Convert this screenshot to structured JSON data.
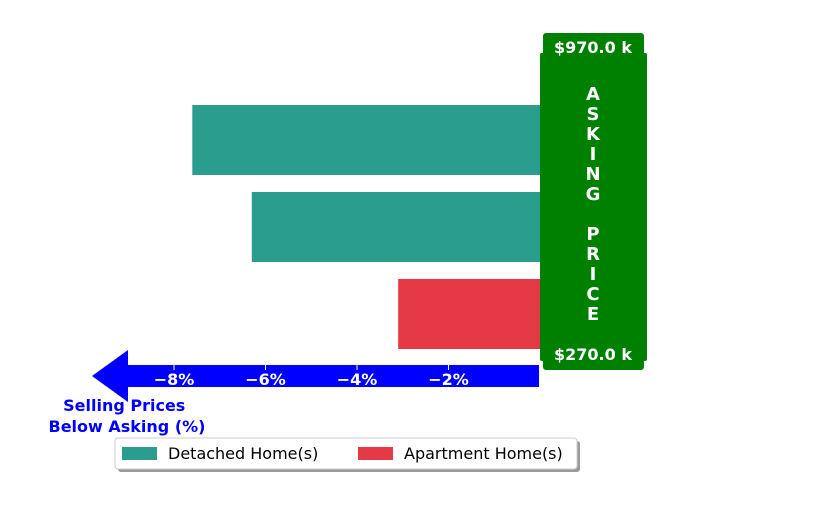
{
  "chart_data": {
    "type": "bar",
    "orientation": "horizontal",
    "categories": [
      "Detached Home(s)",
      "Detached Home(s)",
      "Apartment Home(s)"
    ],
    "values": [
      -7.6,
      -6.3,
      -3.1
    ],
    "bar_colors": [
      "#2a9d8f",
      "#2a9d8f",
      "#e63946"
    ],
    "xlim": [
      -8.9,
      0
    ],
    "xticks": [
      -8,
      -6,
      -4,
      -2
    ],
    "xtick_labels": [
      "−8%",
      "−6%",
      "−4%",
      "−2%"
    ],
    "xlabel_lines": [
      "Selling Prices",
      "Below Asking (%)"
    ],
    "asking_box": {
      "top_price": "$970.0 k",
      "bottom_price": "$270.0 k",
      "text_lines": [
        "A",
        "S",
        "K",
        "I",
        "N",
        "G",
        "",
        "P",
        "R",
        "I",
        "C",
        "E"
      ]
    },
    "legend": [
      {
        "label": "Detached Home(s)",
        "color": "#2a9d8f"
      },
      {
        "label": "Apartment Home(s)",
        "color": "#e63946"
      }
    ],
    "legend_position": "bottom-center",
    "grid": false
  },
  "colors": {
    "asking_green": "#008000",
    "axis_blue": "#0000ff"
  }
}
